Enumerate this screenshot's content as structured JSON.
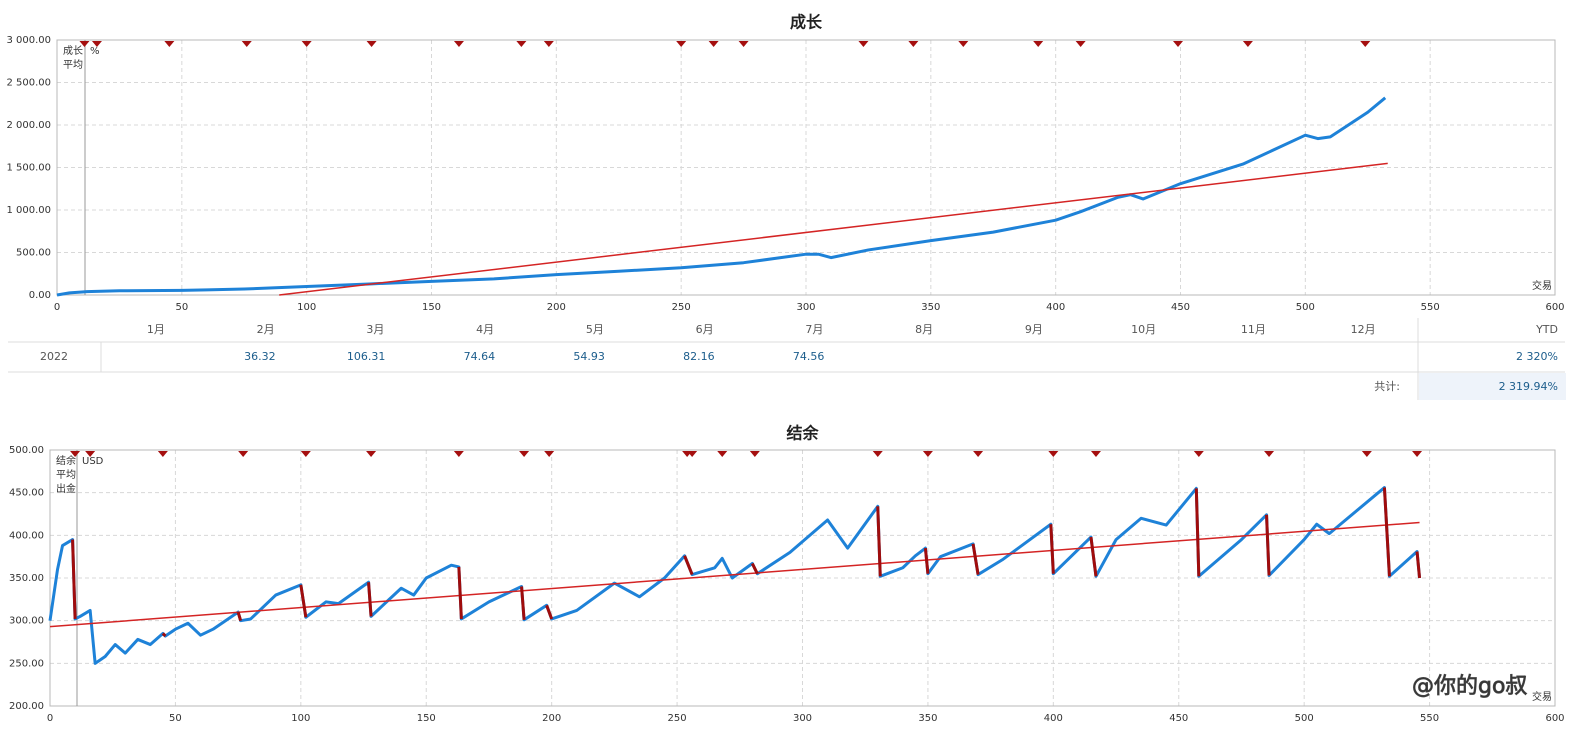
{
  "chart_data": [
    {
      "type": "line",
      "title": "成长",
      "xlabel": "交易",
      "unit": "%",
      "grid": true,
      "xlim": [
        0,
        600
      ],
      "ylim": [
        0,
        3000
      ],
      "xticks": [
        0,
        50,
        100,
        150,
        200,
        250,
        300,
        350,
        400,
        450,
        500,
        550,
        600
      ],
      "yticks": [
        {
          "value": 0,
          "label": "0.00"
        },
        {
          "value": 500,
          "label": "500.00"
        },
        {
          "value": 1000,
          "label": "1 000.00"
        },
        {
          "value": 1500,
          "label": "1 500.00"
        },
        {
          "value": 2000,
          "label": "2 000.00"
        },
        {
          "value": 2500,
          "label": "2 500.00"
        },
        {
          "value": 3000,
          "label": "3 000.00"
        }
      ],
      "marker_color": "#a50f0f",
      "markers": [
        11,
        16,
        45,
        76,
        100,
        126,
        161,
        186,
        197,
        250,
        263,
        275,
        323,
        343,
        363,
        393,
        410,
        449,
        477,
        524
      ],
      "series": [
        {
          "name": "成长",
          "color": "#1e82d8",
          "width": 3,
          "x": [
            0,
            5,
            10,
            12,
            25,
            50,
            60,
            75,
            100,
            125,
            150,
            175,
            200,
            225,
            250,
            275,
            300,
            305,
            310,
            325,
            350,
            375,
            400,
            410,
            425,
            430,
            435,
            450,
            475,
            500,
            505,
            510,
            525,
            532
          ],
          "values": [
            0,
            25,
            35,
            40,
            50,
            55,
            60,
            70,
            100,
            130,
            160,
            190,
            240,
            280,
            320,
            380,
            480,
            480,
            440,
            530,
            640,
            740,
            880,
            980,
            1150,
            1180,
            1130,
            1310,
            1540,
            1880,
            1840,
            1860,
            2150,
            2320
          ]
        },
        {
          "name": "平均",
          "color": "#d42424",
          "width": 1.5,
          "x": [
            89,
            533
          ],
          "values": [
            0,
            1548
          ]
        }
      ]
    },
    {
      "type": "line",
      "title": "结余",
      "xlabel": "交易",
      "unit": "USD",
      "grid": true,
      "xlim": [
        0,
        600
      ],
      "ylim": [
        200,
        500
      ],
      "xticks": [
        0,
        50,
        100,
        150,
        200,
        250,
        300,
        350,
        400,
        450,
        500,
        550,
        600
      ],
      "yticks": [
        {
          "value": 200,
          "label": "200.00"
        },
        {
          "value": 250,
          "label": "250.00"
        },
        {
          "value": 300,
          "label": "300.00"
        },
        {
          "value": 350,
          "label": "350.00"
        },
        {
          "value": 400,
          "label": "400.00"
        },
        {
          "value": 450,
          "label": "450.00"
        },
        {
          "value": 500,
          "label": "500.00"
        }
      ],
      "marker_color": "#a50f0f",
      "markers": [
        10,
        16,
        45,
        77,
        102,
        128,
        163,
        189,
        199,
        254,
        256,
        268,
        281,
        330,
        350,
        370,
        400,
        417,
        458,
        486,
        525,
        545
      ],
      "series": [
        {
          "name": "结余",
          "color": "#1e82d8",
          "width": 3,
          "x": [
            0,
            3,
            5,
            9,
            10,
            12,
            16,
            18,
            22,
            26,
            30,
            35,
            40,
            45,
            46,
            50,
            55,
            60,
            65,
            75,
            76,
            80,
            90,
            100,
            102,
            110,
            115,
            127,
            128,
            140,
            145,
            150,
            160,
            163,
            164,
            175,
            188,
            189,
            198,
            200,
            210,
            225,
            235,
            245,
            253,
            256,
            265,
            268,
            272,
            280,
            282,
            295,
            310,
            318,
            330,
            331,
            340,
            345,
            349,
            350,
            355,
            368,
            370,
            380,
            399,
            400,
            415,
            417,
            425,
            435,
            445,
            457,
            458,
            475,
            485,
            486,
            500,
            505,
            510,
            532,
            534,
            545,
            546
          ],
          "values": [
            300,
            360,
            388,
            395,
            302,
            305,
            312,
            250,
            258,
            272,
            262,
            278,
            272,
            285,
            282,
            290,
            297,
            283,
            290,
            310,
            300,
            302,
            330,
            342,
            304,
            322,
            320,
            345,
            305,
            338,
            330,
            350,
            365,
            363,
            302,
            322,
            340,
            301,
            318,
            302,
            312,
            344,
            328,
            350,
            376,
            354,
            362,
            373,
            350,
            367,
            355,
            380,
            418,
            385,
            434,
            352,
            362,
            376,
            385,
            355,
            375,
            390,
            354,
            372,
            413,
            355,
            398,
            352,
            395,
            420,
            412,
            455,
            352,
            395,
            424,
            353,
            395,
            413,
            402,
            456,
            352,
            381,
            350
          ]
        },
        {
          "name": "平均",
          "color": "#d42424",
          "width": 1.5,
          "x": [
            0,
            546
          ],
          "values": [
            293,
            415
          ]
        },
        {
          "name": "出金",
          "color": "#a00c0c",
          "width": 3,
          "x": [
            9,
            10,
            null,
            45,
            46,
            null,
            75,
            76,
            null,
            100,
            102,
            null,
            127,
            128,
            null,
            163,
            164,
            null,
            188,
            189,
            null,
            198,
            200,
            null,
            253,
            256,
            null,
            280,
            282,
            null,
            330,
            331,
            null,
            349,
            350,
            null,
            368,
            370,
            null,
            399,
            400,
            null,
            415,
            417,
            null,
            457,
            458,
            null,
            485,
            486,
            null,
            532,
            534,
            null,
            545,
            546
          ],
          "values": [
            395,
            302,
            null,
            285,
            282,
            null,
            310,
            300,
            null,
            342,
            304,
            null,
            345,
            305,
            null,
            363,
            302,
            null,
            340,
            301,
            null,
            318,
            302,
            null,
            376,
            354,
            null,
            367,
            355,
            null,
            434,
            352,
            null,
            385,
            355,
            null,
            390,
            354,
            null,
            413,
            355,
            null,
            398,
            352,
            null,
            455,
            352,
            null,
            424,
            353,
            null,
            456,
            352,
            null,
            381,
            350
          ]
        }
      ]
    }
  ],
  "table": {
    "header": [
      "1月",
      "2月",
      "3月",
      "4月",
      "5月",
      "6月",
      "7月",
      "8月",
      "9月",
      "10月",
      "11月",
      "12月",
      "YTD"
    ],
    "rows": [
      [
        "2022",
        null,
        36.32,
        106.31,
        74.64,
        54.93,
        82.16,
        74.56,
        null,
        null,
        null,
        null,
        null,
        "2 320%"
      ]
    ],
    "total_label": "共计:",
    "total": "2 319.94%"
  },
  "watermark": "@你的go叔"
}
